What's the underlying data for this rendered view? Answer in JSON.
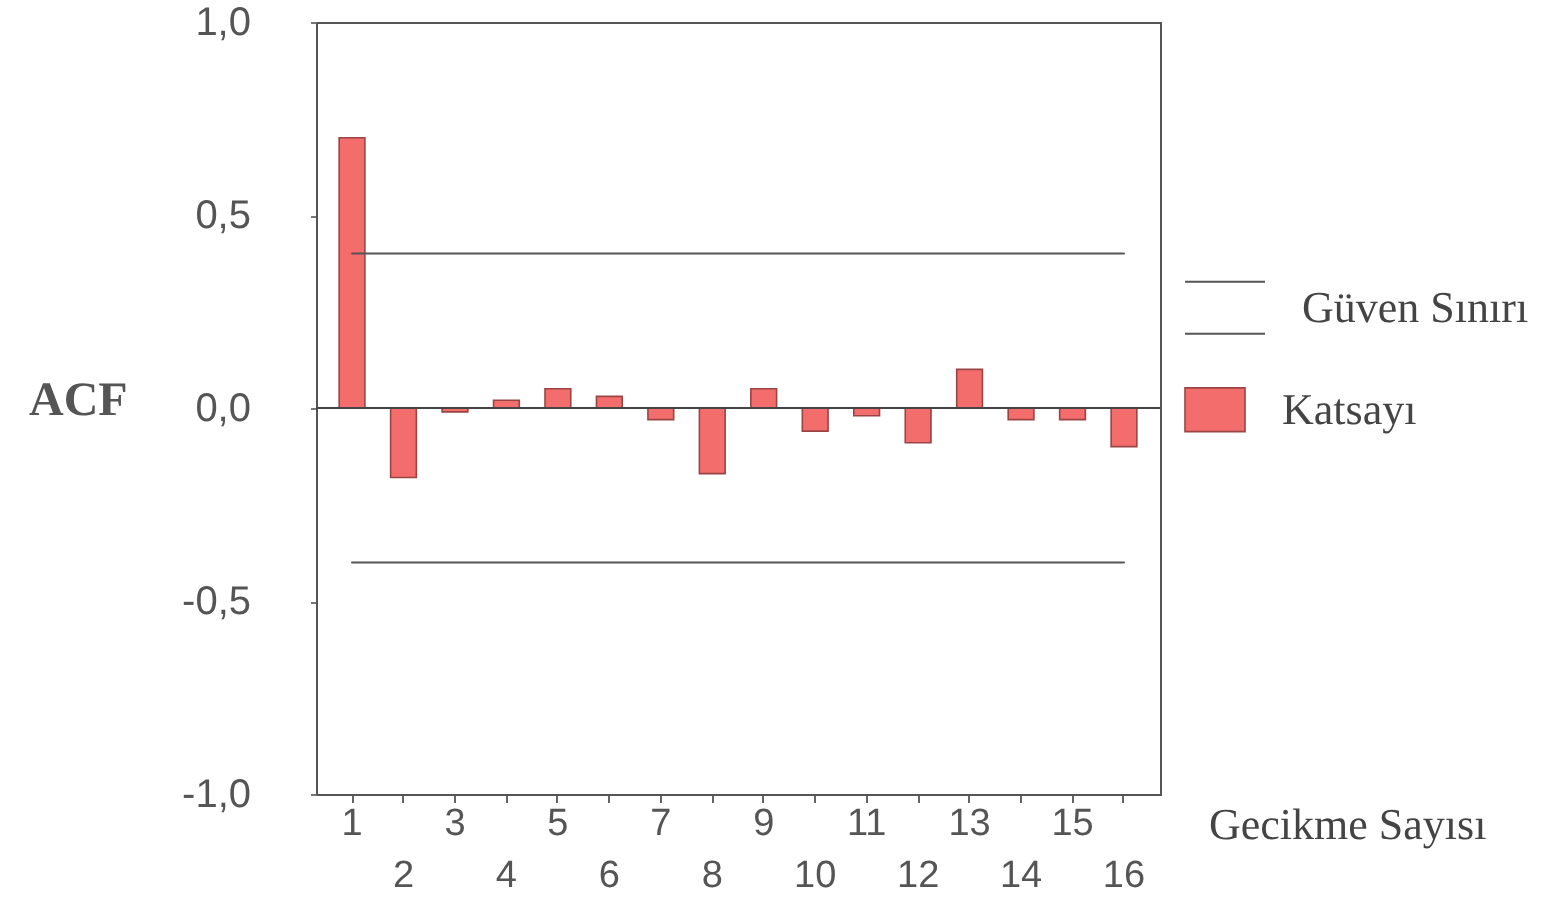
{
  "chart_data": {
    "type": "bar",
    "ylabel": "ACF",
    "xlabel": "Gecikme Sayısı",
    "categories": [
      "1",
      "2",
      "3",
      "4",
      "5",
      "6",
      "7",
      "8",
      "9",
      "10",
      "11",
      "12",
      "13",
      "14",
      "15",
      "16"
    ],
    "series": [
      {
        "name": "Katsayı",
        "color": "#f46d6d",
        "values": [
          0.7,
          -0.18,
          -0.01,
          0.02,
          0.05,
          0.03,
          -0.03,
          -0.17,
          0.05,
          -0.06,
          -0.02,
          -0.09,
          0.1,
          -0.03,
          -0.03,
          -0.1
        ]
      },
      {
        "name": "Güven Sınırı",
        "type": "line",
        "color": "#555555",
        "values": [
          0.4,
          0.4,
          0.4,
          0.4,
          0.4,
          0.4,
          0.4,
          0.4,
          0.4,
          0.4,
          0.4,
          0.4,
          0.4,
          0.4,
          0.4,
          0.4
        ]
      },
      {
        "type": "line",
        "color": "#555555",
        "values": [
          -0.4,
          -0.4,
          -0.4,
          -0.4,
          -0.4,
          -0.4,
          -0.4,
          -0.4,
          -0.4,
          -0.4,
          -0.4,
          -0.4,
          -0.4,
          -0.4,
          -0.4,
          -0.4
        ]
      }
    ],
    "ylim": [
      -1,
      1
    ],
    "yticks": [
      {
        "value": -1,
        "label": "-1,0"
      },
      {
        "value": -0.5,
        "label": "-0,5"
      },
      {
        "value": 0,
        "label": "0,0"
      },
      {
        "value": 0.5,
        "label": "0,5"
      },
      {
        "value": 1,
        "label": "1,0"
      }
    ],
    "ref_lines": [
      {
        "axis": "y",
        "value": 0,
        "color": "#444444"
      }
    ],
    "legend": "right"
  }
}
